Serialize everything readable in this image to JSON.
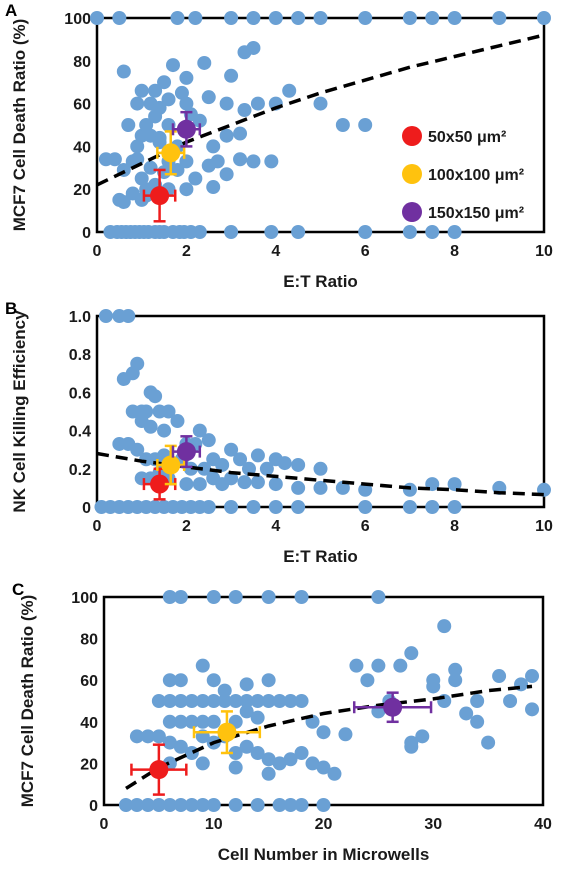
{
  "colors": {
    "scatter": "#6aa0d4",
    "frame": "#000000",
    "trend": "#000000",
    "s50": "#ee1c1c",
    "s100": "#ffc20e",
    "s150": "#7030a0"
  },
  "chart_data": [
    {
      "panel": "A",
      "type": "scatter",
      "xlabel": "E:T Ratio",
      "ylabel": "MCF7 Cell Death Ratio (%)",
      "xlim": [
        0,
        10
      ],
      "ylim": [
        0,
        100
      ],
      "xticks": [
        "0",
        "2",
        "4",
        "6",
        "8",
        "10"
      ],
      "yticks": [
        "0",
        "20",
        "40",
        "60",
        "80",
        "100"
      ],
      "legend": {
        "placement": "right",
        "entries": [
          "50x50 μm²",
          "100x100 μm²",
          "150x150 μm²"
        ]
      },
      "trend": {
        "style": "dashed",
        "x": [
          0,
          1,
          2,
          3,
          4,
          5,
          6,
          7,
          8,
          9,
          10
        ],
        "y": [
          22,
          32,
          42,
          50,
          58,
          65,
          71,
          77,
          82,
          87,
          92
        ]
      },
      "means": [
        {
          "series": "50x50 μm²",
          "x": 1.4,
          "y": 17,
          "xerr": 0.35,
          "yerr": 12
        },
        {
          "series": "100x100 μm²",
          "x": 1.65,
          "y": 37,
          "xerr": 0.3,
          "yerr": 10
        },
        {
          "series": "150x150 μm²",
          "x": 2.0,
          "y": 48,
          "xerr": 0.3,
          "yerr": 8
        }
      ],
      "points": [
        [
          0.3,
          0
        ],
        [
          0.45,
          0
        ],
        [
          0.55,
          0
        ],
        [
          0.65,
          0
        ],
        [
          0.75,
          0
        ],
        [
          0.85,
          0
        ],
        [
          0.95,
          0
        ],
        [
          1.05,
          0
        ],
        [
          1.15,
          0
        ],
        [
          1.3,
          0
        ],
        [
          1.4,
          0
        ],
        [
          1.5,
          0
        ],
        [
          1.7,
          0
        ],
        [
          1.85,
          0
        ],
        [
          1.95,
          0
        ],
        [
          2.1,
          0
        ],
        [
          2.3,
          0
        ],
        [
          3.0,
          0
        ],
        [
          3.9,
          0
        ],
        [
          4.5,
          0
        ],
        [
          6.0,
          0
        ],
        [
          7.0,
          0
        ],
        [
          7.5,
          0
        ],
        [
          8.0,
          0
        ],
        [
          0.2,
          34
        ],
        [
          0.4,
          34
        ],
        [
          0.6,
          29
        ],
        [
          0.8,
          33
        ],
        [
          0.9,
          34
        ],
        [
          1.0,
          25
        ],
        [
          1.1,
          20
        ],
        [
          1.2,
          30
        ],
        [
          1.3,
          22
        ],
        [
          1.5,
          28
        ],
        [
          1.6,
          33
        ],
        [
          1.8,
          29
        ],
        [
          2.0,
          33
        ],
        [
          2.2,
          25
        ],
        [
          2.5,
          31
        ],
        [
          2.7,
          33
        ],
        [
          2.9,
          27
        ],
        [
          3.2,
          34
        ],
        [
          3.5,
          33
        ],
        [
          3.9,
          33
        ],
        [
          0.5,
          15
        ],
        [
          0.6,
          14
        ],
        [
          0.8,
          18
        ],
        [
          1.0,
          15
        ],
        [
          1.1,
          17
        ],
        [
          1.6,
          20
        ],
        [
          2.0,
          20
        ],
        [
          2.6,
          21
        ],
        [
          0.7,
          50
        ],
        [
          0.9,
          40
        ],
        [
          1.0,
          45
        ],
        [
          1.1,
          50
        ],
        [
          1.2,
          45
        ],
        [
          1.3,
          54
        ],
        [
          1.4,
          44
        ],
        [
          1.6,
          50
        ],
        [
          1.8,
          40
        ],
        [
          2.1,
          55
        ],
        [
          2.3,
          52
        ],
        [
          2.6,
          40
        ],
        [
          2.9,
          45
        ],
        [
          3.2,
          46
        ],
        [
          0.9,
          60
        ],
        [
          1.2,
          60
        ],
        [
          1.3,
          66
        ],
        [
          1.4,
          58
        ],
        [
          1.6,
          62
        ],
        [
          1.9,
          65
        ],
        [
          2.0,
          60
        ],
        [
          2.5,
          63
        ],
        [
          2.9,
          60
        ],
        [
          3.3,
          57
        ],
        [
          3.6,
          60
        ],
        [
          4.0,
          60
        ],
        [
          4.3,
          66
        ],
        [
          5.0,
          60
        ],
        [
          5.5,
          50
        ],
        [
          6.0,
          50
        ],
        [
          1.5,
          70
        ],
        [
          1.7,
          78
        ],
        [
          2.0,
          72
        ],
        [
          2.4,
          79
        ],
        [
          3.0,
          73
        ],
        [
          3.3,
          84
        ],
        [
          3.5,
          86
        ],
        [
          0.6,
          75
        ],
        [
          1.0,
          66
        ],
        [
          1.4,
          42
        ],
        [
          0.0,
          100
        ],
        [
          0.5,
          100
        ],
        [
          1.8,
          100
        ],
        [
          2.2,
          100
        ],
        [
          3.0,
          100
        ],
        [
          3.5,
          100
        ],
        [
          4.0,
          100
        ],
        [
          4.5,
          100
        ],
        [
          5.0,
          100
        ],
        [
          6.0,
          100
        ],
        [
          7.0,
          100
        ],
        [
          7.5,
          100
        ],
        [
          8.0,
          100
        ],
        [
          9.0,
          100
        ],
        [
          10.0,
          100
        ]
      ]
    },
    {
      "panel": "B",
      "type": "scatter",
      "xlabel": "E:T Ratio",
      "ylabel": "NK Cell Killing Efficiency",
      "xlim": [
        0,
        10
      ],
      "ylim": [
        0,
        1
      ],
      "xticks": [
        "0",
        "2",
        "4",
        "6",
        "8",
        "10"
      ],
      "yticks": [
        "0",
        "0.2",
        "0.4",
        "0.6",
        "0.8",
        "1.0"
      ],
      "trend": {
        "style": "dashed",
        "x": [
          0,
          1,
          2,
          3,
          4,
          5,
          6,
          7,
          8,
          9,
          10
        ],
        "y": [
          0.28,
          0.24,
          0.21,
          0.18,
          0.16,
          0.14,
          0.12,
          0.1,
          0.09,
          0.075,
          0.065
        ]
      },
      "means": [
        {
          "series": "50x50 μm²",
          "x": 1.4,
          "y": 0.12,
          "xerr": 0.35,
          "yerr": 0.08
        },
        {
          "series": "100x100 μm²",
          "x": 1.65,
          "y": 0.22,
          "xerr": 0.3,
          "yerr": 0.1
        },
        {
          "series": "150x150 μm²",
          "x": 2.0,
          "y": 0.29,
          "xerr": 0.3,
          "yerr": 0.08
        }
      ],
      "points": [
        [
          0.5,
          1.0
        ],
        [
          0.7,
          1.0
        ],
        [
          0.2,
          1.0
        ],
        [
          0.9,
          0.75
        ],
        [
          0.8,
          0.7
        ],
        [
          0.6,
          0.67
        ],
        [
          1.2,
          0.6
        ],
        [
          1.3,
          0.58
        ],
        [
          1.1,
          0.5
        ],
        [
          1.0,
          0.5
        ],
        [
          1.4,
          0.5
        ],
        [
          1.6,
          0.5
        ],
        [
          1.8,
          0.45
        ],
        [
          2.3,
          0.4
        ],
        [
          2.5,
          0.35
        ],
        [
          1.5,
          0.4
        ],
        [
          2.0,
          0.33
        ],
        [
          2.2,
          0.33
        ],
        [
          1.0,
          0.45
        ],
        [
          1.2,
          0.42
        ],
        [
          0.8,
          0.5
        ],
        [
          0.5,
          0.33
        ],
        [
          0.7,
          0.33
        ],
        [
          0.9,
          0.3
        ],
        [
          1.1,
          0.25
        ],
        [
          1.3,
          0.25
        ],
        [
          1.5,
          0.27
        ],
        [
          1.7,
          0.22
        ],
        [
          1.9,
          0.25
        ],
        [
          2.1,
          0.2
        ],
        [
          2.4,
          0.2
        ],
        [
          2.6,
          0.25
        ],
        [
          2.8,
          0.22
        ],
        [
          3.0,
          0.3
        ],
        [
          3.2,
          0.25
        ],
        [
          3.4,
          0.2
        ],
        [
          3.6,
          0.27
        ],
        [
          3.8,
          0.2
        ],
        [
          4.0,
          0.25
        ],
        [
          4.2,
          0.23
        ],
        [
          4.5,
          0.22
        ],
        [
          5.0,
          0.2
        ],
        [
          1.0,
          0.15
        ],
        [
          1.2,
          0.15
        ],
        [
          1.4,
          0.18
        ],
        [
          1.6,
          0.15
        ],
        [
          2.0,
          0.12
        ],
        [
          2.3,
          0.12
        ],
        [
          2.6,
          0.15
        ],
        [
          2.8,
          0.12
        ],
        [
          3.0,
          0.15
        ],
        [
          3.3,
          0.13
        ],
        [
          3.6,
          0.13
        ],
        [
          4.0,
          0.12
        ],
        [
          4.5,
          0.1
        ],
        [
          5.0,
          0.1
        ],
        [
          5.5,
          0.1
        ],
        [
          6.0,
          0.09
        ],
        [
          7.0,
          0.09
        ],
        [
          7.5,
          0.12
        ],
        [
          8.0,
          0.12
        ],
        [
          9.0,
          0.1
        ],
        [
          10.0,
          0.09
        ],
        [
          0.1,
          0
        ],
        [
          0.3,
          0
        ],
        [
          0.5,
          0
        ],
        [
          0.7,
          0
        ],
        [
          0.9,
          0
        ],
        [
          1.1,
          0
        ],
        [
          1.3,
          0
        ],
        [
          1.5,
          0
        ],
        [
          1.7,
          0
        ],
        [
          1.9,
          0
        ],
        [
          2.1,
          0
        ],
        [
          2.3,
          0
        ],
        [
          2.5,
          0
        ],
        [
          3.0,
          0
        ],
        [
          3.5,
          0
        ],
        [
          4.0,
          0
        ],
        [
          4.5,
          0
        ],
        [
          6.0,
          0
        ],
        [
          7.0,
          0
        ],
        [
          7.5,
          0
        ],
        [
          8.0,
          0
        ]
      ]
    },
    {
      "panel": "C",
      "type": "scatter",
      "xlabel": "Cell Number in Microwells",
      "ylabel": "MCF7 Cell Death Ratio (%)",
      "xlim": [
        0,
        40
      ],
      "ylim": [
        0,
        100
      ],
      "xticks": [
        "0",
        "10",
        "20",
        "30",
        "40"
      ],
      "yticks": [
        "0",
        "20",
        "40",
        "60",
        "80",
        "100"
      ],
      "trend": {
        "style": "dashed",
        "x": [
          2,
          5,
          10,
          15,
          20,
          25,
          30,
          35,
          39
        ],
        "y": [
          8,
          18,
          30,
          38,
          44,
          48,
          51,
          55,
          57
        ]
      },
      "means": [
        {
          "series": "50x50 μm²",
          "x": 5,
          "y": 17,
          "xerr": 2.5,
          "yerr": 12
        },
        {
          "series": "100x100 μm²",
          "x": 11.2,
          "y": 35,
          "xerr": 3,
          "yerr": 10
        },
        {
          "series": "150x150 μm²",
          "x": 26.3,
          "y": 47,
          "xerr": 3.5,
          "yerr": 7
        }
      ],
      "points": [
        [
          2,
          0
        ],
        [
          3,
          0
        ],
        [
          4,
          0
        ],
        [
          5,
          0
        ],
        [
          6,
          0
        ],
        [
          7,
          0
        ],
        [
          8,
          0
        ],
        [
          9,
          0
        ],
        [
          10,
          0
        ],
        [
          12,
          0
        ],
        [
          14,
          0
        ],
        [
          16,
          0
        ],
        [
          17,
          0
        ],
        [
          18,
          0
        ],
        [
          20,
          0
        ],
        [
          3,
          33
        ],
        [
          4,
          33
        ],
        [
          5,
          33
        ],
        [
          6,
          30
        ],
        [
          7,
          28
        ],
        [
          8,
          25
        ],
        [
          9,
          33
        ],
        [
          10,
          30
        ],
        [
          11,
          33
        ],
        [
          12,
          25
        ],
        [
          13,
          28
        ],
        [
          14,
          25
        ],
        [
          15,
          22
        ],
        [
          16,
          20
        ],
        [
          17,
          22
        ],
        [
          18,
          25
        ],
        [
          19,
          20
        ],
        [
          20,
          18
        ],
        [
          21,
          15
        ],
        [
          5,
          50
        ],
        [
          6,
          50
        ],
        [
          7,
          50
        ],
        [
          8,
          50
        ],
        [
          9,
          50
        ],
        [
          10,
          50
        ],
        [
          11,
          50
        ],
        [
          12,
          50
        ],
        [
          13,
          50
        ],
        [
          14,
          50
        ],
        [
          15,
          50
        ],
        [
          16,
          50
        ],
        [
          17,
          50
        ],
        [
          18,
          50
        ],
        [
          19,
          40
        ],
        [
          20,
          35
        ],
        [
          6,
          40
        ],
        [
          7,
          40
        ],
        [
          8,
          40
        ],
        [
          9,
          40
        ],
        [
          10,
          40
        ],
        [
          12,
          40
        ],
        [
          13,
          45
        ],
        [
          14,
          42
        ],
        [
          15,
          60
        ],
        [
          6,
          60
        ],
        [
          7,
          60
        ],
        [
          9,
          67
        ],
        [
          10,
          60
        ],
        [
          11,
          55
        ],
        [
          13,
          58
        ],
        [
          6,
          20
        ],
        [
          9,
          20
        ],
        [
          12,
          18
        ],
        [
          15,
          15
        ],
        [
          6,
          100
        ],
        [
          7,
          100
        ],
        [
          10,
          100
        ],
        [
          12,
          100
        ],
        [
          15,
          100
        ],
        [
          18,
          100
        ],
        [
          25,
          100
        ],
        [
          22,
          34
        ],
        [
          23,
          67
        ],
        [
          24,
          60
        ],
        [
          25,
          67
        ],
        [
          26,
          50
        ],
        [
          27,
          67
        ],
        [
          28,
          28
        ],
        [
          28,
          73
        ],
        [
          29,
          33
        ],
        [
          30,
          57
        ],
        [
          30,
          60
        ],
        [
          31,
          50
        ],
        [
          31,
          86
        ],
        [
          32,
          60
        ],
        [
          32,
          65
        ],
        [
          33,
          44
        ],
        [
          34,
          50
        ],
        [
          34,
          40
        ],
        [
          35,
          30
        ],
        [
          36,
          62
        ],
        [
          37,
          50
        ],
        [
          38,
          58
        ],
        [
          39,
          46
        ],
        [
          39,
          62
        ],
        [
          28,
          30
        ],
        [
          25,
          45
        ]
      ]
    }
  ],
  "panels": [
    {
      "letter": "A",
      "xlabel": "E:T Ratio",
      "ylabel": "MCF7 Cell Death Ratio (%)"
    },
    {
      "letter": "B",
      "xlabel": "E:T Ratio",
      "ylabel": "NK Cell Killing Efficiency"
    },
    {
      "letter": "C",
      "xlabel": "Cell Number in Microwells",
      "ylabel": "MCF7 Cell Death Ratio (%)"
    }
  ],
  "legend": [
    {
      "label": "50x50 μm²",
      "color": "#ee1c1c"
    },
    {
      "label": "100x100 μm²",
      "color": "#ffc20e"
    },
    {
      "label": "150x150 μm²",
      "color": "#7030a0"
    }
  ]
}
